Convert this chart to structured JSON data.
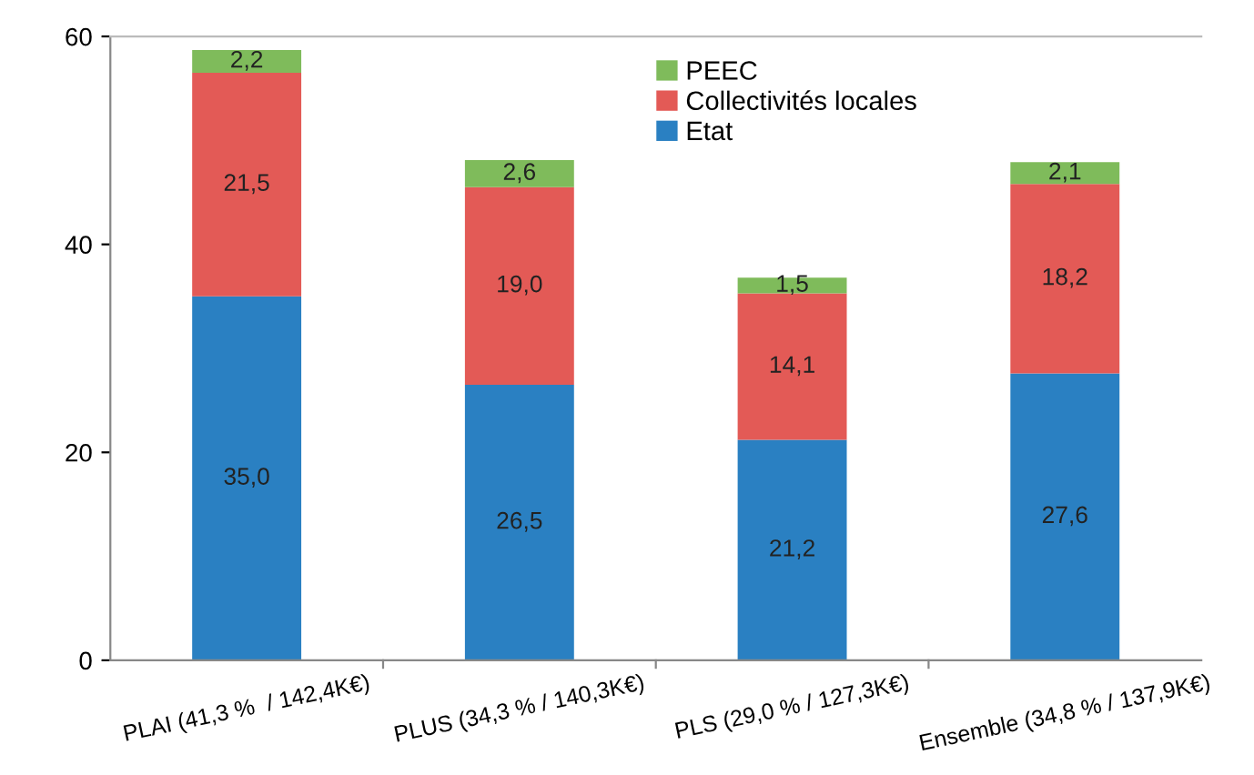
{
  "chart_data": {
    "type": "bar",
    "stacked": true,
    "categories": [
      "PLAI (41,3 %  / 142,4K€)",
      "PLUS (34,3 % / 140,3K€)",
      "PLS (29,0 % / 127,3K€)",
      "Ensemble (34,8 % / 137,9K€)"
    ],
    "series": [
      {
        "name": "Etat",
        "color": "#2a80c2",
        "values": [
          35.0,
          26.5,
          21.2,
          27.6
        ],
        "value_labels": [
          "35,0",
          "26,5",
          "21,2",
          "27,6"
        ]
      },
      {
        "name": "Collectivités locales",
        "color": "#e35a56",
        "values": [
          21.5,
          19.0,
          14.1,
          18.2
        ],
        "value_labels": [
          "21,5",
          "19,0",
          "14,1",
          "18,2"
        ]
      },
      {
        "name": "PEEC",
        "color": "#7fbb5b",
        "values": [
          2.2,
          2.6,
          1.5,
          2.1
        ],
        "value_labels": [
          "2,2",
          "2,6",
          "1,5",
          "2,1"
        ]
      }
    ],
    "ylim": [
      0,
      60
    ],
    "yticks": [
      0,
      20,
      40,
      60
    ],
    "grid": false,
    "legend": "top"
  }
}
